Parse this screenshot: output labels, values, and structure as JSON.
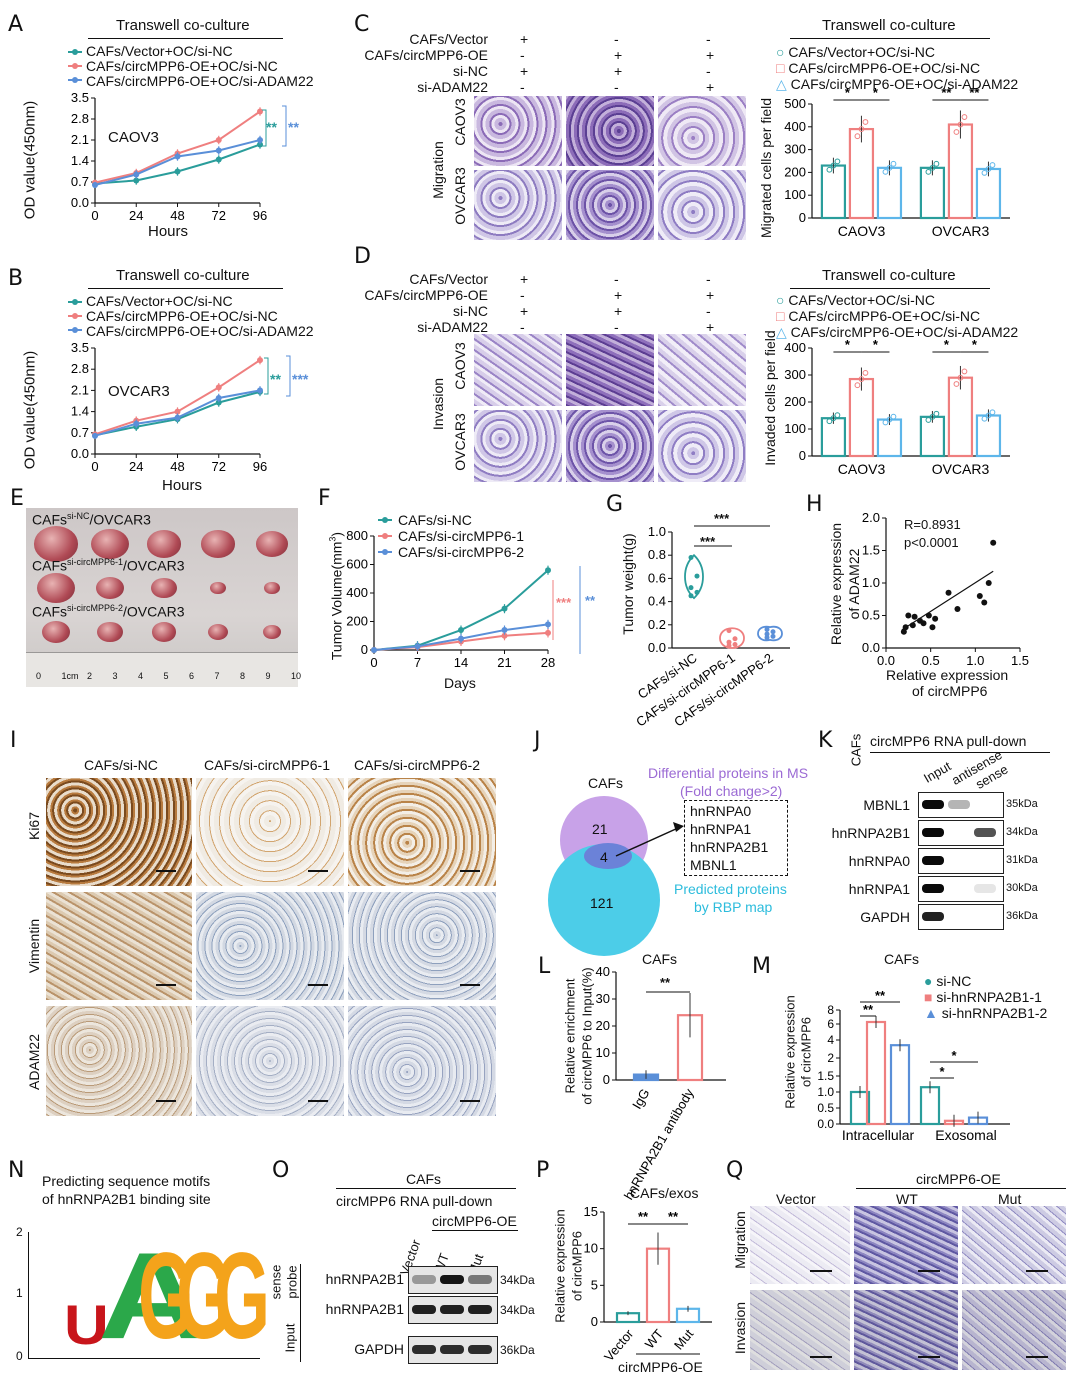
{
  "colors": {
    "teal": "#2a9d9b",
    "pink": "#ef7f7f",
    "blue": "#5a8fd8",
    "lblue": "#5db6ea",
    "purple": "#c8a2e8",
    "cyan": "#4ccde8",
    "text_purple": "#9b6ad4",
    "text_cyan": "#2cbcdc"
  },
  "panel_letters": [
    "A",
    "B",
    "C",
    "D",
    "E",
    "F",
    "G",
    "H",
    "I",
    "J",
    "K",
    "L",
    "M",
    "N",
    "O",
    "P",
    "Q"
  ],
  "A": {
    "title": "Transwell co-culture",
    "legend": [
      "CAFs/Vector+OC/si-NC",
      "CAFs/circMPP6-OE+OC/si-NC",
      "CAFs/circMPP6-OE+OC/si-ADAM22"
    ],
    "cell_line": "CAOV3",
    "ylabel": "OD value(450nm)",
    "xlabel": "Hours",
    "sig": [
      "**",
      "**"
    ],
    "chart_data": {
      "type": "line",
      "x": [
        0,
        24,
        48,
        72,
        96
      ],
      "yticks": [
        "0.0",
        "0.7",
        "1.4",
        "2.1",
        "2.8",
        "3.5"
      ],
      "ylim": [
        0,
        3.5
      ],
      "series": [
        {
          "name": "CAFs/Vector+OC/si-NC",
          "values": [
            0.65,
            0.75,
            1.05,
            1.45,
            1.95
          ]
        },
        {
          "name": "CAFs/circMPP6-OE+OC/si-NC",
          "values": [
            0.68,
            1.0,
            1.65,
            2.1,
            3.05
          ]
        },
        {
          "name": "CAFs/circMPP6-OE+OC/si-ADAM22",
          "values": [
            0.6,
            0.95,
            1.55,
            1.75,
            2.1
          ]
        }
      ]
    }
  },
  "B": {
    "title": "Transwell co-culture",
    "legend": [
      "CAFs/Vector+OC/si-NC",
      "CAFs/circMPP6-OE+OC/si-NC",
      "CAFs/circMPP6-OE+OC/si-ADAM22"
    ],
    "cell_line": "OVCAR3",
    "ylabel": "OD value(450nm)",
    "xlabel": "Hours",
    "sig": [
      "**",
      "***"
    ],
    "chart_data": {
      "type": "line",
      "x": [
        0,
        24,
        48,
        72,
        96
      ],
      "yticks": [
        "0.0",
        "0.7",
        "1.4",
        "2.1",
        "2.8",
        "3.5"
      ],
      "ylim": [
        0,
        3.5
      ],
      "series": [
        {
          "name": "CAFs/Vector+OC/si-NC",
          "values": [
            0.62,
            0.9,
            1.15,
            1.7,
            2.05
          ]
        },
        {
          "name": "CAFs/circMPP6-OE+OC/si-NC",
          "values": [
            0.65,
            1.1,
            1.4,
            2.2,
            3.1
          ]
        },
        {
          "name": "CAFs/circMPP6-OE+OC/si-ADAM22",
          "values": [
            0.6,
            1.0,
            1.2,
            1.85,
            2.1
          ]
        }
      ]
    }
  },
  "C": {
    "rows": [
      "CAFs/Vector",
      "CAFs/circMPP6-OE",
      "si-NC",
      "si-ADAM22"
    ],
    "signs": [
      [
        "+",
        "-",
        "-"
      ],
      [
        "-",
        "+",
        "+"
      ],
      [
        "+",
        "+",
        "-"
      ],
      [
        "-",
        "-",
        "+"
      ]
    ],
    "side": "Migration",
    "lines": [
      "CAOV3",
      "OVCAR3"
    ],
    "title": "Transwell co-culture",
    "legend": [
      "CAFs/Vector+OC/si-NC",
      "CAFs/circMPP6-OE+OC/si-NC",
      "CAFs/circMPP6-OE+OC/si-ADAM22"
    ],
    "ylabel": "Migrated cells per field",
    "sig": [
      "*",
      "*",
      "**",
      "**"
    ],
    "chart_data": {
      "type": "bar",
      "categories": [
        "CAOV3",
        "OVCAR3"
      ],
      "yticks": [
        "0",
        "100",
        "200",
        "300",
        "400",
        "500"
      ],
      "ylim": [
        0,
        500
      ],
      "series": [
        {
          "name": "CAFs/Vector+OC/si-NC",
          "values": [
            230,
            220
          ]
        },
        {
          "name": "CAFs/circMPP6-OE+OC/si-NC",
          "values": [
            390,
            410
          ]
        },
        {
          "name": "CAFs/circMPP6-OE+OC/si-ADAM22",
          "values": [
            220,
            215
          ]
        }
      ]
    }
  },
  "D": {
    "rows": [
      "CAFs/Vector",
      "CAFs/circMPP6-OE",
      "si-NC",
      "si-ADAM22"
    ],
    "signs": [
      [
        "+",
        "-",
        "-"
      ],
      [
        "-",
        "+",
        "+"
      ],
      [
        "+",
        "+",
        "-"
      ],
      [
        "-",
        "-",
        "+"
      ]
    ],
    "side": "Invasion",
    "lines": [
      "CAOV3",
      "OVCAR3"
    ],
    "title": "Transwell co-culture",
    "legend": [
      "CAFs/Vector+OC/si-NC",
      "CAFs/circMPP6-OE+OC/si-NC",
      "CAFs/circMPP6-OE+OC/si-ADAM22"
    ],
    "ylabel": "Invaded cells per field",
    "sig": [
      "*",
      "*",
      "*",
      "*"
    ],
    "chart_data": {
      "type": "bar",
      "categories": [
        "CAOV3",
        "OVCAR3"
      ],
      "yticks": [
        "0",
        "100",
        "200",
        "300",
        "400"
      ],
      "ylim": [
        0,
        400
      ],
      "series": [
        {
          "name": "CAFs/Vector+OC/si-NC",
          "values": [
            140,
            145
          ]
        },
        {
          "name": "CAFs/circMPP6-OE+OC/si-NC",
          "values": [
            285,
            290
          ]
        },
        {
          "name": "CAFs/circMPP6-OE+OC/si-ADAM22",
          "values": [
            135,
            150
          ]
        }
      ]
    }
  },
  "E": {
    "labels": [
      [
        "CAFs",
        "si-NC",
        "/OVCAR3"
      ],
      [
        "CAFs",
        "si-circMPP6-1",
        "/OVCAR3"
      ],
      [
        "CAFs",
        "si-circMPP6-2",
        "/OVCAR3"
      ]
    ],
    "ruler": [
      "0",
      "1cm",
      "2",
      "3",
      "4",
      "5",
      "6",
      "7",
      "8",
      "9",
      "10"
    ]
  },
  "F": {
    "legend": [
      "CAFs/si-NC",
      "CAFs/si-circMPP6-1",
      "CAFs/si-circMPP6-2"
    ],
    "ylabel": "Tumor Volume(mm",
    "ylabel_sup": "3",
    "ylabel_end": ")",
    "xlabel": "Days",
    "sig": [
      "***",
      "**"
    ],
    "chart_data": {
      "type": "line",
      "x": [
        0,
        7,
        14,
        21,
        28
      ],
      "yticks": [
        "0",
        "200",
        "400",
        "600",
        "800"
      ],
      "ylim": [
        0,
        800
      ],
      "series": [
        {
          "name": "CAFs/si-NC",
          "values": [
            0,
            30,
            140,
            290,
            560
          ]
        },
        {
          "name": "CAFs/si-circMPP6-1",
          "values": [
            0,
            20,
            60,
            100,
            120
          ]
        },
        {
          "name": "CAFs/si-circMPP6-2",
          "values": [
            0,
            25,
            80,
            140,
            180
          ]
        }
      ]
    }
  },
  "G": {
    "ylabel": "Tumor weight(g)",
    "sig": [
      "***",
      "***"
    ],
    "chart_data": {
      "type": "violin",
      "categories": [
        "CAFs/si-NC",
        "CAFs/si-circMPP6-1",
        "CAFs/si-circMPP6-2"
      ],
      "yticks": [
        "0.0",
        "0.2",
        "0.4",
        "0.6",
        "0.8",
        "1.0"
      ],
      "ylim": [
        0,
        1.0
      ],
      "series": [
        {
          "values": [
            0.78,
            0.62,
            0.52,
            0.48,
            0.45
          ]
        },
        {
          "values": [
            0.15,
            0.08,
            0.05,
            0.03,
            0.02
          ]
        },
        {
          "values": [
            0.16,
            0.14,
            0.12,
            0.1,
            0.09
          ]
        }
      ]
    }
  },
  "H": {
    "r": "R=0.8931",
    "p": "p<0.0001",
    "ylabel": [
      "Relative expression",
      "of ADAM22"
    ],
    "xlabel": [
      "Relative expression",
      "of circMPP6"
    ],
    "chart_data": {
      "type": "scatter",
      "xticks": [
        "0.0",
        "0.5",
        "1.0",
        "1.5"
      ],
      "yticks": [
        "0.0",
        "0.5",
        "1.0",
        "1.5",
        "2.0"
      ],
      "xlim": [
        0,
        1.5
      ],
      "ylim": [
        0,
        2.0
      ],
      "x": [
        0.2,
        0.22,
        0.25,
        0.3,
        0.32,
        0.38,
        0.42,
        0.48,
        0.52,
        0.55,
        0.7,
        0.8,
        1.05,
        1.1,
        1.15,
        1.2
      ],
      "y": [
        0.25,
        0.32,
        0.5,
        0.35,
        0.48,
        0.42,
        0.38,
        0.5,
        0.32,
        0.45,
        0.85,
        0.6,
        0.8,
        0.7,
        1.0,
        1.62
      ]
    }
  },
  "I": {
    "cols": [
      "CAFs/si-NC",
      "CAFs/si-circMPP6-1",
      "CAFs/si-circMPP6-2"
    ],
    "rows": [
      "Ki67",
      "Vimentin",
      "ADAM22"
    ]
  },
  "J": {
    "top": "CAFs",
    "n1": "21",
    "n2": "4",
    "n3": "121",
    "ms": [
      "Differential proteins in MS",
      "(Fold change>2)"
    ],
    "list": [
      "hnRNPA0",
      "hnRNPA1",
      "hnRNPA2B1",
      "MBNL1"
    ],
    "rbp": [
      "Predicted proteins",
      "by RBP map"
    ]
  },
  "K": {
    "cafs": "CAFs",
    "title": "circMPP6 RNA pull-down",
    "cols": [
      "Input",
      "antisense",
      "sense"
    ],
    "rows": [
      "MBNL1",
      "hnRNPA2B1",
      "hnRNPA0",
      "hnRNPA1",
      "GAPDH"
    ],
    "kda": [
      "35kDa",
      "34kDa",
      "31kDa",
      "30kDa",
      "36kDa"
    ]
  },
  "L": {
    "title": "CAFs",
    "ylabel": [
      "Relative enrichment",
      "of circMPP6 to Input(%)"
    ],
    "sig": "**",
    "chart_data": {
      "type": "bar",
      "categories": [
        "IgG",
        "hnRNPA2B1 antibody"
      ],
      "yticks": [
        "0",
        "10",
        "20",
        "30",
        "40"
      ],
      "ylim": [
        0,
        40
      ],
      "values": [
        2,
        24
      ]
    }
  },
  "M": {
    "title": "CAFs",
    "legend": [
      "si-NC",
      "si-hnRNPA2B1-1",
      "si-hnRNPA2B1-2"
    ],
    "ylabel": [
      "Relative expression",
      "of circMPP6"
    ],
    "sig": [
      "**",
      "**",
      "*",
      "*"
    ],
    "chart_data": {
      "type": "bar",
      "categories": [
        "Intracellular",
        "Exosomal"
      ],
      "yticks": [
        "0.0",
        "0.5",
        "1.0",
        "1.5",
        "2",
        "4",
        "6",
        "8"
      ],
      "series": [
        {
          "name": "si-NC",
          "values": [
            1.0,
            1.15
          ]
        },
        {
          "name": "si-hnRNPA2B1-1",
          "values": [
            6.5,
            0.1
          ]
        },
        {
          "name": "si-hnRNPA2B1-2",
          "values": [
            3.6,
            0.2
          ]
        }
      ]
    }
  },
  "N": {
    "title": [
      "Predicting sequence motifs",
      "of hnRNPA2B1 binding site"
    ],
    "yticks": [
      "0",
      "1",
      "2"
    ],
    "letters": [
      "U",
      "A",
      "G",
      "G",
      "G"
    ]
  },
  "O": {
    "title": "CAFs",
    "sub": "circMPP6 RNA pull-down",
    "oe": "circMPP6-OE",
    "cols": [
      "Vector",
      "WT",
      "Mut"
    ],
    "side1": [
      "sense",
      "probe"
    ],
    "side2": "Input",
    "rows": [
      "hnRNPA2B1",
      "hnRNPA2B1",
      "GAPDH"
    ],
    "kda": [
      "34kDa",
      "34kDa",
      "36kDa"
    ]
  },
  "P": {
    "title": "CAFs/exos",
    "ylabel": [
      "Relative expression",
      "of circMPP6"
    ],
    "sig": [
      "**",
      "**"
    ],
    "oe": "circMPP6-OE",
    "chart_data": {
      "type": "bar",
      "categories": [
        "Vector",
        "WT",
        "Mut"
      ],
      "yticks": [
        "0",
        "5",
        "10",
        "15"
      ],
      "ylim": [
        0,
        15
      ],
      "values": [
        1.2,
        10.0,
        1.8
      ]
    }
  },
  "Q": {
    "oe": "circMPP6-OE",
    "cols": [
      "Vector",
      "WT",
      "Mut"
    ],
    "rows": [
      "Migration",
      "Invasion"
    ]
  }
}
